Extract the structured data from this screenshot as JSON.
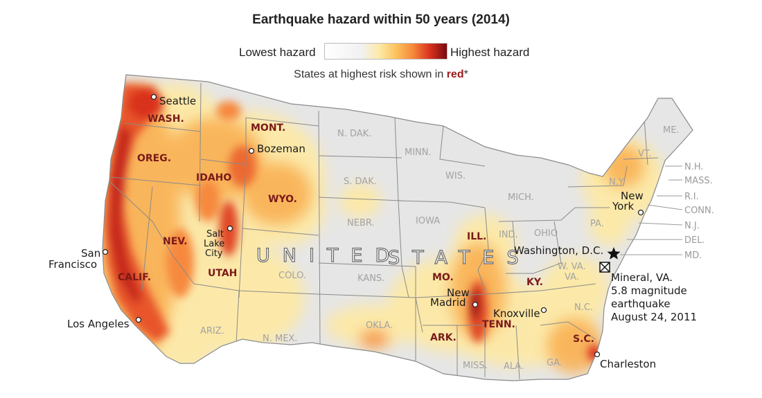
{
  "header": {
    "title": "Earthquake hazard within 50 years (2014)",
    "legend_low": "Lowest hazard",
    "legend_high": "Highest hazard",
    "note_prefix": "States at highest risk shown in ",
    "note_red": "red",
    "note_suffix": "*"
  },
  "colors": {
    "background": "#ffffff",
    "land": "#e4e4e4",
    "borders": "#888888",
    "hazard_low": "#fde9a6",
    "hazard_mid": "#f6893d",
    "hazard_high": "#d9331e",
    "hazard_extreme": "#7a0a10",
    "high_risk_label": "#7a1a1a",
    "low_risk_label": "#a2a2a2"
  },
  "map": {
    "country_label": "UNITED STATES",
    "country_word1": "UNITED",
    "country_word2": "STATES",
    "high_risk_states": [
      "WASH.",
      "OREG.",
      "CALIF.",
      "NEV.",
      "IDAHO",
      "MONT.",
      "WYO.",
      "UTAH",
      "ILL.",
      "MO.",
      "ARK.",
      "TENN.",
      "KY.",
      "S.C."
    ],
    "other_states": [
      "N. DAK.",
      "MINN.",
      "WIS.",
      "S. DAK.",
      "NEBR.",
      "IOWA",
      "MICH.",
      "IND.",
      "OHIO",
      "PA.",
      "N.Y.",
      "VT.",
      "ME.",
      "KANS.",
      "COLO.",
      "ARIZ.",
      "N. MEX.",
      "OKLA.",
      "MISS.",
      "ALA.",
      "GA.",
      "N.C.",
      "VA.",
      "W. VA."
    ],
    "northeast_labels": [
      "N.H.",
      "MASS.",
      "R.I.",
      "CONN.",
      "N.J.",
      "DEL.",
      "MD."
    ],
    "cities": [
      "Seattle",
      "Bozeman",
      "Salt Lake City",
      "San Francisco",
      "Los Angeles",
      "New Madrid",
      "Knoxville",
      "New York",
      "Washington, D.C.",
      "Charleston"
    ],
    "city_lines": {
      "salt_lake": [
        "Salt",
        "Lake",
        "City"
      ],
      "san_francisco": [
        "San",
        "Francisco"
      ],
      "new_madrid": [
        "New",
        "Madrid"
      ],
      "new_york": [
        "New",
        "York"
      ]
    },
    "annotation": {
      "icon": "earthquake-epicenter-icon",
      "lines": [
        "Mineral, VA.",
        "5.8 magnitude",
        "earthquake",
        "August 24, 2011"
      ]
    },
    "capital_icon": "star-icon"
  }
}
